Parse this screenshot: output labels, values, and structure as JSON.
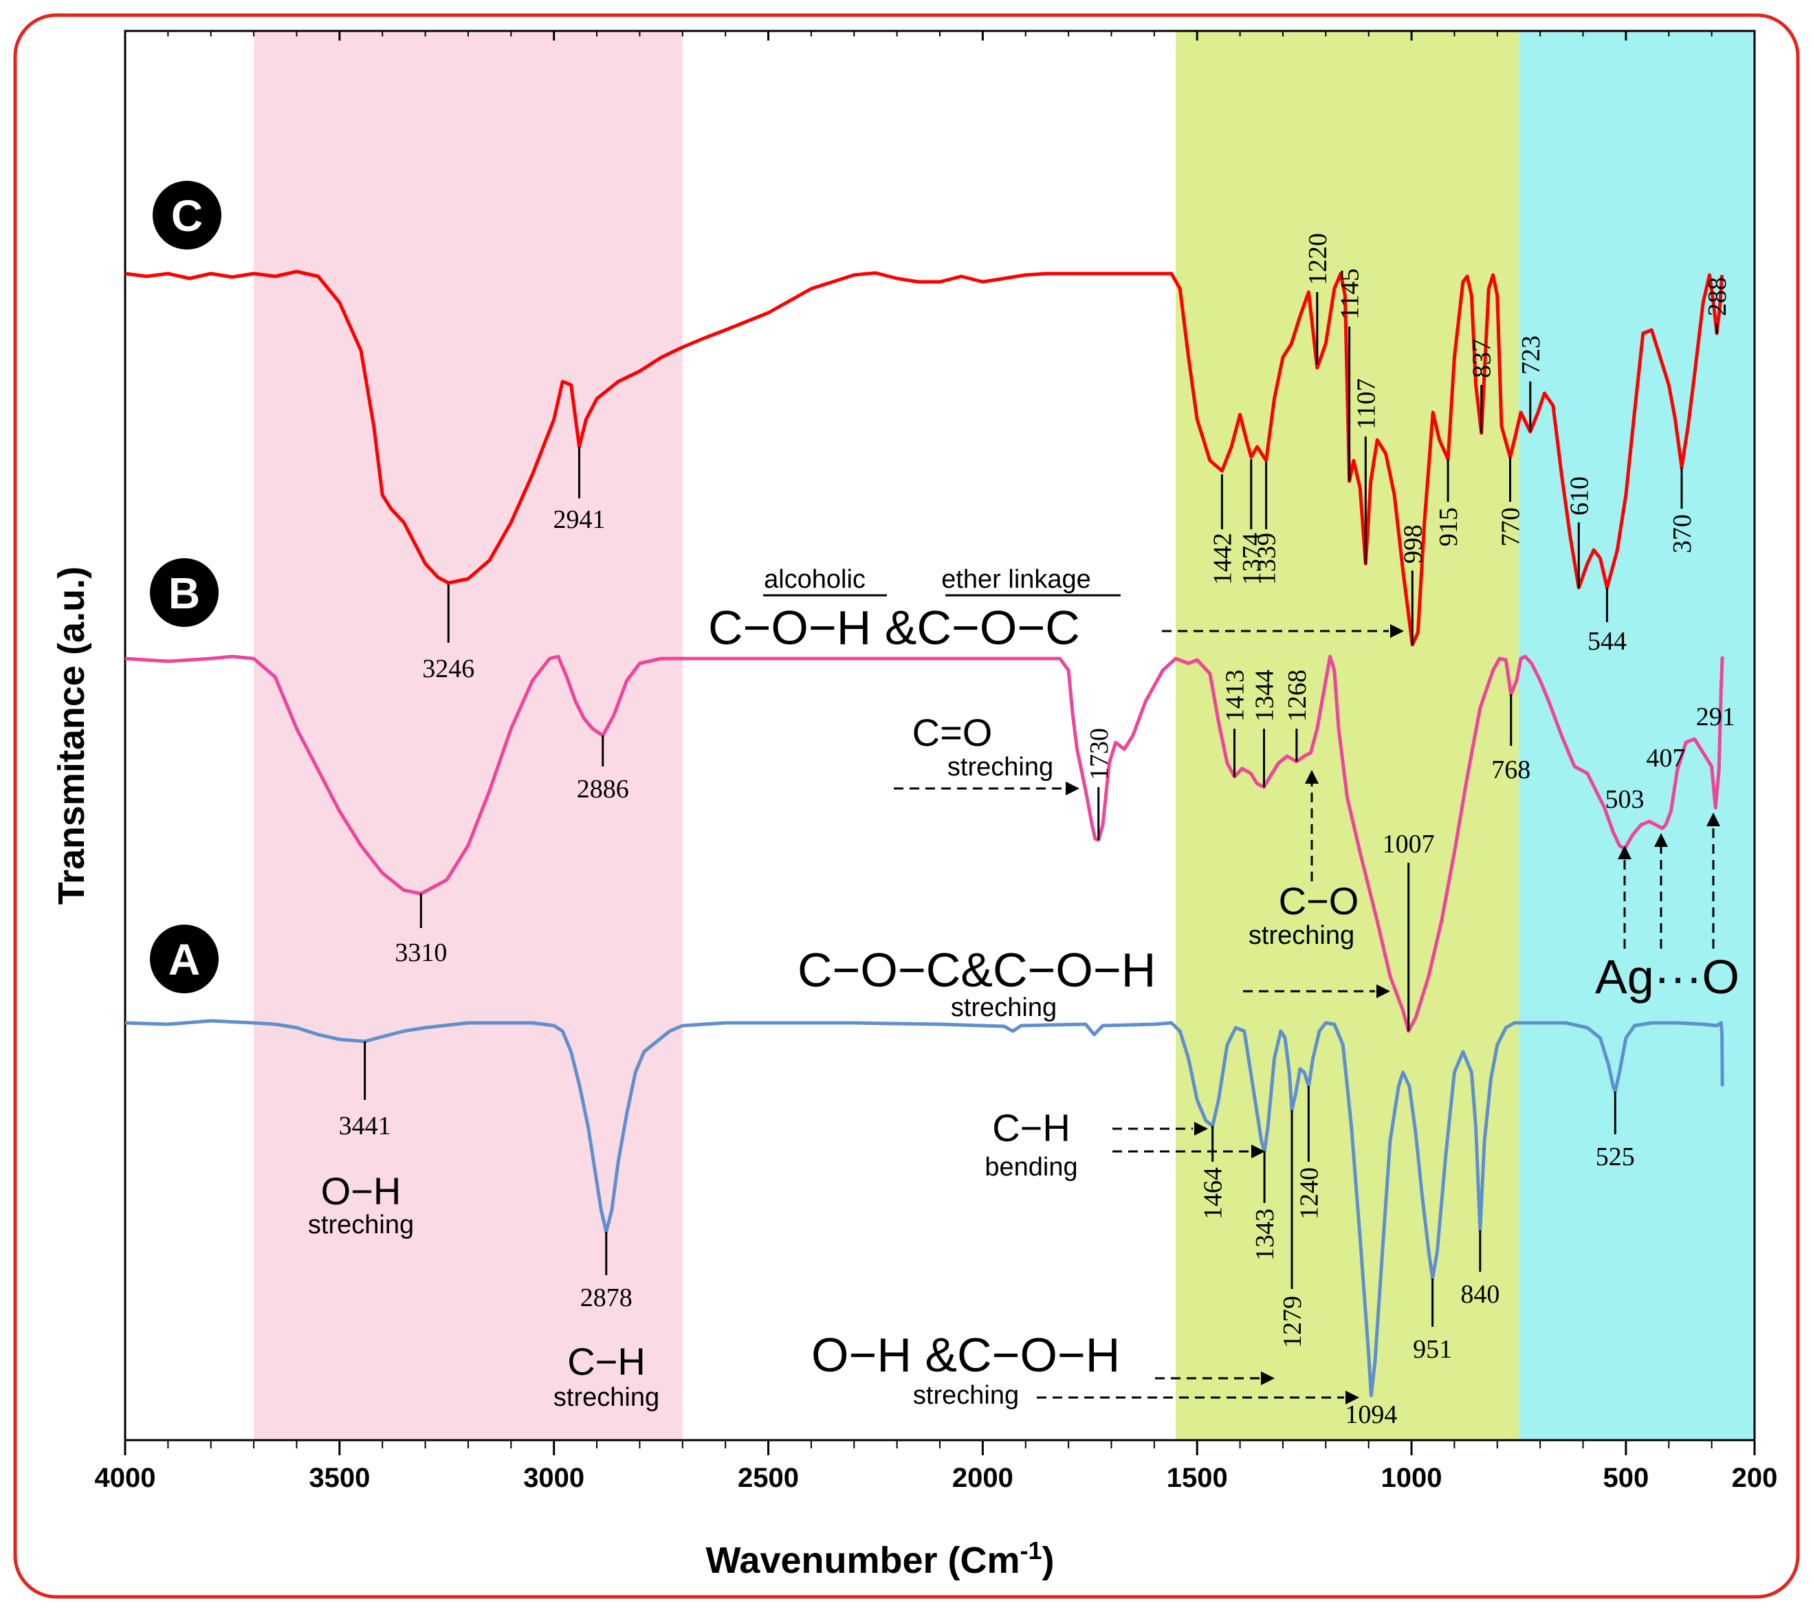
{
  "chart_data": {
    "type": "line",
    "title": "",
    "xlabel": "Wavenumber (Cm",
    "xlabel_sup": "-1",
    "xlabel_close": ")",
    "ylabel": "Transmitance (a.u.)",
    "xlim": [
      4000,
      200
    ],
    "x_reversed": true,
    "grid": false,
    "ticks": [
      {
        "value": 4000,
        "label": "4000"
      },
      {
        "value": 3500,
        "label": "3500"
      },
      {
        "value": 3000,
        "label": "3000"
      },
      {
        "value": 2500,
        "label": "2500"
      },
      {
        "value": 2000,
        "label": "2000"
      },
      {
        "value": 1500,
        "label": "1500"
      },
      {
        "value": 1000,
        "label": "1000"
      },
      {
        "value": 500,
        "label": "500"
      },
      {
        "value": 200,
        "label": "200"
      }
    ],
    "regions": [
      {
        "from": 3700,
        "to": 2700,
        "color": "#fadbe5"
      },
      {
        "from": 1550,
        "to": 750,
        "color": "#dcee90"
      },
      {
        "from": 750,
        "to": 200,
        "color": "#a3f2f2"
      }
    ],
    "series": [
      {
        "name": "C",
        "color": "#ff0000",
        "peaks": [
          {
            "x": 3246,
            "label": "3246"
          },
          {
            "x": 2941,
            "label": "2941"
          },
          {
            "x": 1442,
            "label": "1442"
          },
          {
            "x": 1374,
            "label": "1374"
          },
          {
            "x": 1339,
            "label": "1339"
          },
          {
            "x": 1220,
            "label": "1220"
          },
          {
            "x": 1145,
            "label": "1145"
          },
          {
            "x": 1107,
            "label": "1107"
          },
          {
            "x": 998,
            "label": "998"
          },
          {
            "x": 915,
            "label": "915"
          },
          {
            "x": 837,
            "label": "837"
          },
          {
            "x": 770,
            "label": "770"
          },
          {
            "x": 723,
            "label": "723"
          },
          {
            "x": 610,
            "label": "610"
          },
          {
            "x": 544,
            "label": "544"
          },
          {
            "x": 370,
            "label": "370"
          },
          {
            "x": 288,
            "label": "288"
          }
        ]
      },
      {
        "name": "B",
        "color": "#f0449a",
        "peaks": [
          {
            "x": 3310,
            "label": "3310"
          },
          {
            "x": 2886,
            "label": "2886"
          },
          {
            "x": 1730,
            "label": "1730"
          },
          {
            "x": 1413,
            "label": "1413"
          },
          {
            "x": 1344,
            "label": "1344"
          },
          {
            "x": 1268,
            "label": "1268"
          },
          {
            "x": 1007,
            "label": "1007"
          },
          {
            "x": 768,
            "label": "768"
          },
          {
            "x": 503,
            "label": "503"
          },
          {
            "x": 407,
            "label": "407"
          },
          {
            "x": 291,
            "label": "291"
          }
        ]
      },
      {
        "name": "A",
        "color": "#5f8fce",
        "peaks": [
          {
            "x": 3441,
            "label": "3441"
          },
          {
            "x": 2878,
            "label": "2878"
          },
          {
            "x": 1464,
            "label": "1464"
          },
          {
            "x": 1343,
            "label": "1343"
          },
          {
            "x": 1279,
            "label": "1279"
          },
          {
            "x": 1240,
            "label": "1240"
          },
          {
            "x": 1094,
            "label": "1094"
          },
          {
            "x": 951,
            "label": "951"
          },
          {
            "x": 840,
            "label": "840"
          },
          {
            "x": 525,
            "label": "525"
          }
        ]
      }
    ],
    "annotations": {
      "oh_stretch": {
        "main": "O−H",
        "sub": "streching"
      },
      "ch_stretch": {
        "main": "C−H",
        "sub": "streching"
      },
      "alcoholic": "alcoholic",
      "ether": "ether linkage",
      "coh_coc": "C−O−H &C−O−C",
      "co_double": {
        "main": "C=O",
        "sub": "streching"
      },
      "co_single": {
        "main": "C−O",
        "sub": "streching"
      },
      "coc_coh": {
        "main": "C−O−C&C−O−H",
        "sub": "streching"
      },
      "ag_o": "Ag···O",
      "ch_bend": {
        "main": "C−H",
        "sub": "bending"
      },
      "oh_coh": {
        "main": "O−H &C−O−H",
        "sub": "streching"
      }
    }
  }
}
